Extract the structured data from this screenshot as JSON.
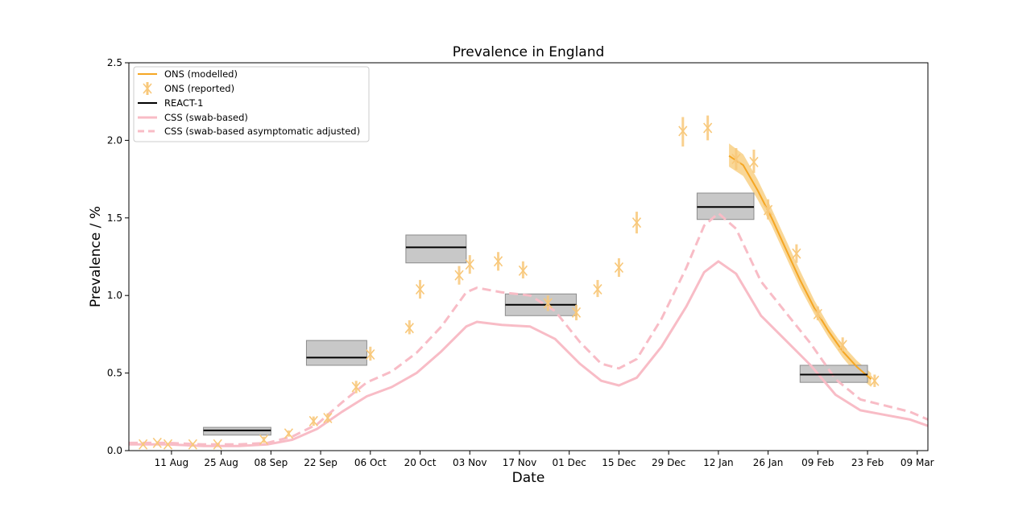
{
  "chart_data": {
    "type": "line",
    "title": "Prevalence in England",
    "xlabel": "Date",
    "ylabel": "Prevalence / %",
    "ylim": [
      0,
      2.5
    ],
    "xlim": [
      "2020-07-30",
      "2021-03-12"
    ],
    "x_ticks": [
      {
        "date": "2020-08-11",
        "label": "11 Aug"
      },
      {
        "date": "2020-08-25",
        "label": "25 Aug"
      },
      {
        "date": "2020-09-08",
        "label": "08 Sep"
      },
      {
        "date": "2020-09-22",
        "label": "22 Sep"
      },
      {
        "date": "2020-10-06",
        "label": "06 Oct"
      },
      {
        "date": "2020-10-20",
        "label": "20 Oct"
      },
      {
        "date": "2020-11-03",
        "label": "03 Nov"
      },
      {
        "date": "2020-11-17",
        "label": "17 Nov"
      },
      {
        "date": "2020-12-01",
        "label": "01 Dec"
      },
      {
        "date": "2020-12-15",
        "label": "15 Dec"
      },
      {
        "date": "2020-12-29",
        "label": "29 Dec"
      },
      {
        "date": "2021-01-12",
        "label": "12 Jan"
      },
      {
        "date": "2021-01-26",
        "label": "26 Jan"
      },
      {
        "date": "2021-02-09",
        "label": "09 Feb"
      },
      {
        "date": "2021-02-23",
        "label": "23 Feb"
      },
      {
        "date": "2021-03-09",
        "label": "09 Mar"
      }
    ],
    "y_ticks": [
      {
        "value": 0.0,
        "label": "0.0"
      },
      {
        "value": 0.5,
        "label": "0.5"
      },
      {
        "value": 1.0,
        "label": "1.0"
      },
      {
        "value": 1.5,
        "label": "1.5"
      },
      {
        "value": 2.0,
        "label": "2.0"
      },
      {
        "value": 2.5,
        "label": "2.5"
      }
    ],
    "grid": false,
    "legend_position": "top-left",
    "colors": {
      "ons": "#f5a623",
      "ons_band": "#f7c66b",
      "ons_reported": "#f8c87a",
      "react": "#000000",
      "react_box_fill": "#c8c8c8",
      "react_box_edge": "#8c8c8c",
      "css": "#f8bcc6"
    },
    "series": [
      {
        "name": "ONS (modelled)",
        "kind": "line_band",
        "points": [
          {
            "x": "2021-01-15",
            "y": 1.9,
            "lo": 1.83,
            "hi": 1.98
          },
          {
            "x": "2021-01-19",
            "y": 1.84,
            "lo": 1.77,
            "hi": 1.91
          },
          {
            "x": "2021-01-23",
            "y": 1.68,
            "lo": 1.62,
            "hi": 1.75
          },
          {
            "x": "2021-01-27",
            "y": 1.5,
            "lo": 1.45,
            "hi": 1.56
          },
          {
            "x": "2021-01-31",
            "y": 1.3,
            "lo": 1.25,
            "hi": 1.36
          },
          {
            "x": "2021-02-04",
            "y": 1.1,
            "lo": 1.05,
            "hi": 1.16
          },
          {
            "x": "2021-02-08",
            "y": 0.92,
            "lo": 0.88,
            "hi": 0.97
          },
          {
            "x": "2021-02-12",
            "y": 0.77,
            "lo": 0.73,
            "hi": 0.81
          },
          {
            "x": "2021-02-16",
            "y": 0.64,
            "lo": 0.6,
            "hi": 0.68
          },
          {
            "x": "2021-02-20",
            "y": 0.54,
            "lo": 0.49,
            "hi": 0.58
          },
          {
            "x": "2021-02-24",
            "y": 0.46,
            "lo": 0.41,
            "hi": 0.5
          }
        ]
      },
      {
        "name": "ONS (reported)",
        "kind": "errorbar_x",
        "points": [
          {
            "x": "2020-08-03",
            "y": 0.04,
            "lo": 0.03,
            "hi": 0.05
          },
          {
            "x": "2020-08-07",
            "y": 0.05,
            "lo": 0.04,
            "hi": 0.06
          },
          {
            "x": "2020-08-10",
            "y": 0.04,
            "lo": 0.03,
            "hi": 0.05
          },
          {
            "x": "2020-08-17",
            "y": 0.04,
            "lo": 0.03,
            "hi": 0.05
          },
          {
            "x": "2020-08-24",
            "y": 0.04,
            "lo": 0.03,
            "hi": 0.05
          },
          {
            "x": "2020-09-06",
            "y": 0.07,
            "lo": 0.05,
            "hi": 0.09
          },
          {
            "x": "2020-09-13",
            "y": 0.11,
            "lo": 0.09,
            "hi": 0.13
          },
          {
            "x": "2020-09-20",
            "y": 0.19,
            "lo": 0.16,
            "hi": 0.22
          },
          {
            "x": "2020-09-24",
            "y": 0.21,
            "lo": 0.18,
            "hi": 0.24
          },
          {
            "x": "2020-10-02",
            "y": 0.41,
            "lo": 0.37,
            "hi": 0.45
          },
          {
            "x": "2020-10-06",
            "y": 0.62,
            "lo": 0.58,
            "hi": 0.67
          },
          {
            "x": "2020-10-17",
            "y": 0.79,
            "lo": 0.75,
            "hi": 0.84
          },
          {
            "x": "2020-10-20",
            "y": 1.04,
            "lo": 0.98,
            "hi": 1.1
          },
          {
            "x": "2020-10-31",
            "y": 1.13,
            "lo": 1.07,
            "hi": 1.19
          },
          {
            "x": "2020-11-03",
            "y": 1.2,
            "lo": 1.14,
            "hi": 1.26
          },
          {
            "x": "2020-11-11",
            "y": 1.22,
            "lo": 1.16,
            "hi": 1.28
          },
          {
            "x": "2020-11-18",
            "y": 1.16,
            "lo": 1.11,
            "hi": 1.22
          },
          {
            "x": "2020-11-25",
            "y": 0.95,
            "lo": 0.9,
            "hi": 1.0
          },
          {
            "x": "2020-12-03",
            "y": 0.89,
            "lo": 0.84,
            "hi": 0.94
          },
          {
            "x": "2020-12-09",
            "y": 1.04,
            "lo": 0.99,
            "hi": 1.1
          },
          {
            "x": "2020-12-15",
            "y": 1.18,
            "lo": 1.12,
            "hi": 1.24
          },
          {
            "x": "2020-12-20",
            "y": 1.47,
            "lo": 1.4,
            "hi": 1.54
          },
          {
            "x": "2021-01-02",
            "y": 2.06,
            "lo": 1.96,
            "hi": 2.15
          },
          {
            "x": "2021-01-09",
            "y": 2.08,
            "lo": 2.0,
            "hi": 2.16
          },
          {
            "x": "2021-01-17",
            "y": 1.88,
            "lo": 1.81,
            "hi": 1.95
          },
          {
            "x": "2021-01-22",
            "y": 1.86,
            "lo": 1.79,
            "hi": 1.94
          },
          {
            "x": "2021-01-26",
            "y": 1.55,
            "lo": 1.49,
            "hi": 1.62
          },
          {
            "x": "2021-02-03",
            "y": 1.27,
            "lo": 1.21,
            "hi": 1.33
          },
          {
            "x": "2021-02-09",
            "y": 0.88,
            "lo": 0.84,
            "hi": 0.93
          },
          {
            "x": "2021-02-16",
            "y": 0.68,
            "lo": 0.64,
            "hi": 0.73
          },
          {
            "x": "2021-02-25",
            "y": 0.45,
            "lo": 0.41,
            "hi": 0.49
          }
        ]
      },
      {
        "name": "REACT-1",
        "kind": "boxes",
        "rounds": [
          {
            "start": "2020-08-20",
            "end": "2020-09-08",
            "y": 0.13,
            "lo": 0.1,
            "hi": 0.15
          },
          {
            "start": "2020-09-18",
            "end": "2020-10-05",
            "y": 0.6,
            "lo": 0.55,
            "hi": 0.71
          },
          {
            "start": "2020-10-16",
            "end": "2020-11-02",
            "y": 1.31,
            "lo": 1.21,
            "hi": 1.39
          },
          {
            "start": "2020-11-13",
            "end": "2020-12-03",
            "y": 0.94,
            "lo": 0.87,
            "hi": 1.01
          },
          {
            "start": "2021-01-06",
            "end": "2021-01-22",
            "y": 1.57,
            "lo": 1.49,
            "hi": 1.66
          },
          {
            "start": "2021-02-04",
            "end": "2021-02-23",
            "y": 0.49,
            "lo": 0.44,
            "hi": 0.55
          }
        ]
      },
      {
        "name": "CSS (swab-based)",
        "kind": "line",
        "style": "solid",
        "points": [
          {
            "x": "2020-07-30",
            "y": 0.04
          },
          {
            "x": "2020-08-10",
            "y": 0.04
          },
          {
            "x": "2020-08-20",
            "y": 0.03
          },
          {
            "x": "2020-08-30",
            "y": 0.03
          },
          {
            "x": "2020-09-07",
            "y": 0.04
          },
          {
            "x": "2020-09-14",
            "y": 0.07
          },
          {
            "x": "2020-09-21",
            "y": 0.14
          },
          {
            "x": "2020-09-28",
            "y": 0.25
          },
          {
            "x": "2020-10-05",
            "y": 0.35
          },
          {
            "x": "2020-10-12",
            "y": 0.41
          },
          {
            "x": "2020-10-19",
            "y": 0.5
          },
          {
            "x": "2020-10-26",
            "y": 0.64
          },
          {
            "x": "2020-11-02",
            "y": 0.8
          },
          {
            "x": "2020-11-05",
            "y": 0.83
          },
          {
            "x": "2020-11-12",
            "y": 0.81
          },
          {
            "x": "2020-11-20",
            "y": 0.8
          },
          {
            "x": "2020-11-27",
            "y": 0.72
          },
          {
            "x": "2020-12-04",
            "y": 0.56
          },
          {
            "x": "2020-12-10",
            "y": 0.45
          },
          {
            "x": "2020-12-15",
            "y": 0.42
          },
          {
            "x": "2020-12-20",
            "y": 0.47
          },
          {
            "x": "2020-12-27",
            "y": 0.67
          },
          {
            "x": "2021-01-03",
            "y": 0.93
          },
          {
            "x": "2021-01-08",
            "y": 1.15
          },
          {
            "x": "2021-01-12",
            "y": 1.22
          },
          {
            "x": "2021-01-17",
            "y": 1.14
          },
          {
            "x": "2021-01-24",
            "y": 0.87
          },
          {
            "x": "2021-01-31",
            "y": 0.71
          },
          {
            "x": "2021-02-07",
            "y": 0.55
          },
          {
            "x": "2021-02-14",
            "y": 0.36
          },
          {
            "x": "2021-02-21",
            "y": 0.26
          },
          {
            "x": "2021-02-28",
            "y": 0.23
          },
          {
            "x": "2021-03-07",
            "y": 0.2
          },
          {
            "x": "2021-03-12",
            "y": 0.16
          }
        ]
      },
      {
        "name": "CSS (swab-based asymptomatic adjusted)",
        "kind": "line",
        "style": "dashed",
        "points": [
          {
            "x": "2020-07-30",
            "y": 0.05
          },
          {
            "x": "2020-08-10",
            "y": 0.05
          },
          {
            "x": "2020-08-20",
            "y": 0.04
          },
          {
            "x": "2020-08-30",
            "y": 0.04
          },
          {
            "x": "2020-09-07",
            "y": 0.05
          },
          {
            "x": "2020-09-14",
            "y": 0.09
          },
          {
            "x": "2020-09-21",
            "y": 0.17
          },
          {
            "x": "2020-09-28",
            "y": 0.31
          },
          {
            "x": "2020-10-05",
            "y": 0.44
          },
          {
            "x": "2020-10-12",
            "y": 0.51
          },
          {
            "x": "2020-10-19",
            "y": 0.63
          },
          {
            "x": "2020-10-26",
            "y": 0.8
          },
          {
            "x": "2020-11-02",
            "y": 1.02
          },
          {
            "x": "2020-11-05",
            "y": 1.05
          },
          {
            "x": "2020-11-12",
            "y": 1.02
          },
          {
            "x": "2020-11-20",
            "y": 1.0
          },
          {
            "x": "2020-11-27",
            "y": 0.9
          },
          {
            "x": "2020-12-04",
            "y": 0.7
          },
          {
            "x": "2020-12-10",
            "y": 0.56
          },
          {
            "x": "2020-12-15",
            "y": 0.53
          },
          {
            "x": "2020-12-20",
            "y": 0.59
          },
          {
            "x": "2020-12-27",
            "y": 0.85
          },
          {
            "x": "2021-01-03",
            "y": 1.18
          },
          {
            "x": "2021-01-08",
            "y": 1.45
          },
          {
            "x": "2021-01-12",
            "y": 1.53
          },
          {
            "x": "2021-01-17",
            "y": 1.43
          },
          {
            "x": "2021-01-24",
            "y": 1.09
          },
          {
            "x": "2021-01-31",
            "y": 0.89
          },
          {
            "x": "2021-02-07",
            "y": 0.69
          },
          {
            "x": "2021-02-14",
            "y": 0.46
          },
          {
            "x": "2021-02-21",
            "y": 0.33
          },
          {
            "x": "2021-02-28",
            "y": 0.29
          },
          {
            "x": "2021-03-07",
            "y": 0.25
          },
          {
            "x": "2021-03-12",
            "y": 0.2
          }
        ]
      }
    ]
  }
}
